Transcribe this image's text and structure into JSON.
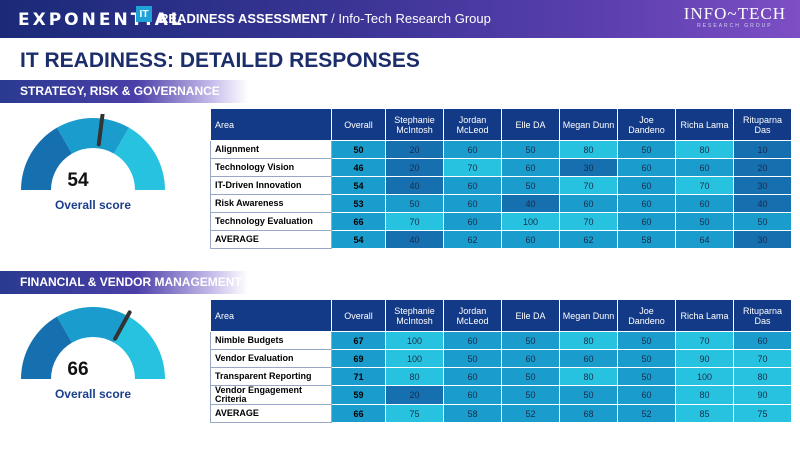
{
  "header": {
    "logo_text": "EXPONENTIAL",
    "logo_badge": "IT",
    "title_bold": "READINESS ASSESSMENT",
    "title_rest": " / Info-Tech Research Group",
    "brand_main": "INFO~TECH",
    "brand_sub": "RESEARCH GROUP"
  },
  "page_title": "IT READINESS: DETAILED RESPONSES",
  "colors": {
    "header_start": "#1a2a78",
    "header_end": "#7d4fc4",
    "title": "#1b2e6b",
    "table_header": "#123a86",
    "cell_dark": "#1670b0",
    "cell_mid": "#1a9ccc",
    "cell_light": "#27c2df"
  },
  "columns": [
    "Area",
    "Overall",
    "Stephanie McIntosh",
    "Jordan McLeod",
    "Elle DA",
    "Megan Dunn",
    "Joe Dandeno",
    "Richa Lama",
    "Rituparna Das"
  ],
  "sections": [
    {
      "title": "STRATEGY, RISK & GOVERNANCE",
      "score": "54",
      "score_value": 54,
      "score_label": "Overall score",
      "rows": [
        {
          "area": "Alignment",
          "overall": "50",
          "values": [
            "20",
            "60",
            "50",
            "80",
            "50",
            "80",
            "10"
          ]
        },
        {
          "area": "Technology Vision",
          "overall": "46",
          "values": [
            "20",
            "70",
            "60",
            "30",
            "60",
            "60",
            "20"
          ]
        },
        {
          "area": "IT-Driven Innovation",
          "overall": "54",
          "values": [
            "40",
            "60",
            "50",
            "70",
            "60",
            "70",
            "30"
          ]
        },
        {
          "area": "Risk Awareness",
          "overall": "53",
          "values": [
            "50",
            "60",
            "40",
            "60",
            "60",
            "60",
            "40"
          ]
        },
        {
          "area": "Technology Evaluation",
          "overall": "66",
          "values": [
            "70",
            "60",
            "100",
            "70",
            "60",
            "50",
            "50"
          ]
        },
        {
          "area": "AVERAGE",
          "overall": "54",
          "values": [
            "40",
            "62",
            "60",
            "62",
            "58",
            "64",
            "30"
          ]
        }
      ]
    },
    {
      "title": "FINANCIAL & VENDOR MANAGEMENT",
      "score": "66",
      "score_value": 66,
      "score_label": "Overall score",
      "rows": [
        {
          "area": "Nimble Budgets",
          "overall": "67",
          "values": [
            "100",
            "60",
            "50",
            "80",
            "50",
            "70",
            "60"
          ]
        },
        {
          "area": "Vendor Evaluation",
          "overall": "69",
          "values": [
            "100",
            "50",
            "60",
            "60",
            "50",
            "90",
            "70"
          ]
        },
        {
          "area": "Transparent Reporting",
          "overall": "71",
          "values": [
            "80",
            "60",
            "50",
            "80",
            "50",
            "100",
            "80"
          ]
        },
        {
          "area": "Vendor Engagement Criteria",
          "overall": "59",
          "values": [
            "20",
            "60",
            "50",
            "50",
            "60",
            "80",
            "90"
          ]
        },
        {
          "area": "AVERAGE",
          "overall": "66",
          "values": [
            "75",
            "58",
            "52",
            "68",
            "52",
            "85",
            "75"
          ]
        }
      ]
    }
  ]
}
